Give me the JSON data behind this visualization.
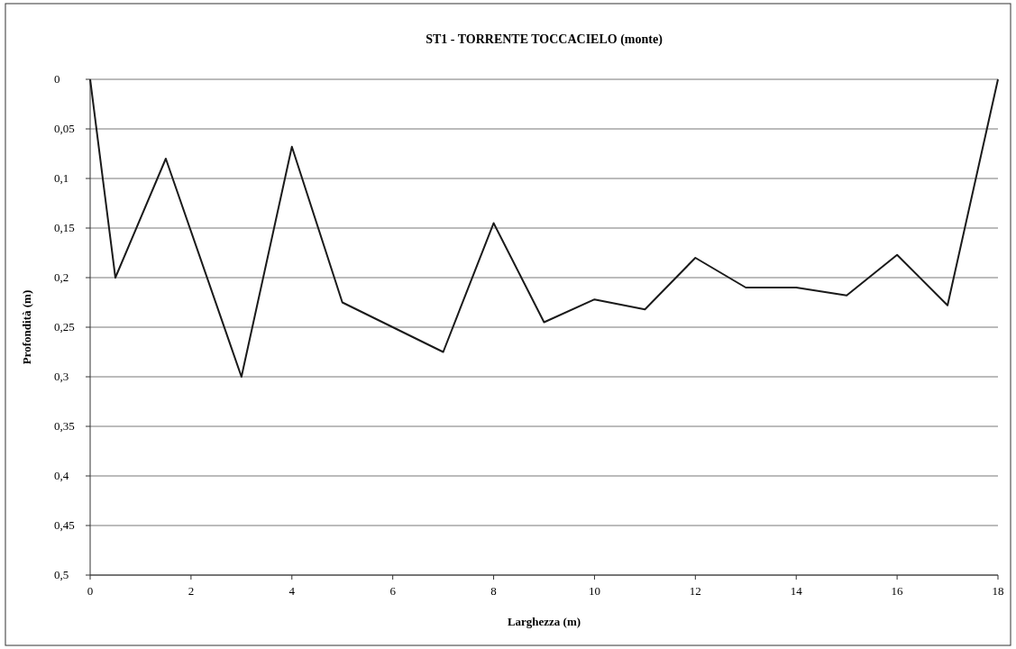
{
  "chart_data": {
    "type": "line",
    "title": "ST1 - TORRENTE TOCCACIELO (monte)",
    "xlabel": "Larghezza (m)",
    "ylabel": "Profondità (m)",
    "x": [
      0,
      0.5,
      1.5,
      3,
      4,
      5,
      7,
      8,
      9,
      10,
      11,
      12,
      13,
      14,
      15,
      16,
      17,
      18
    ],
    "series": [
      {
        "color": "#1a1a1a",
        "values": [
          0,
          0.2,
          0.08,
          0.3,
          0.068,
          0.225,
          0.275,
          0.145,
          0.245,
          0.222,
          0.232,
          0.18,
          0.21,
          0.21,
          0.218,
          0.177,
          0.228,
          0
        ]
      }
    ],
    "xlim": [
      0,
      18
    ],
    "xticks": [
      0,
      2,
      4,
      6,
      8,
      10,
      12,
      14,
      16,
      18
    ],
    "ylim": [
      0.5,
      0
    ],
    "yticks": [
      0,
      {
        "value": 0.05,
        "label": "0,05"
      },
      {
        "value": 0.1,
        "label": "0,1"
      },
      {
        "value": 0.15,
        "label": "0,15"
      },
      {
        "value": 0.2,
        "label": "0,2"
      },
      {
        "value": 0.25,
        "label": "0,25"
      },
      {
        "value": 0.3,
        "label": "0,3"
      },
      {
        "value": 0.35,
        "label": "0,35"
      },
      {
        "value": 0.4,
        "label": "0,4"
      },
      {
        "value": 0.45,
        "label": "0,45"
      },
      {
        "value": 0.5,
        "label": "0,5"
      }
    ],
    "grid": "y",
    "marker": "none",
    "line_style": "solid"
  }
}
